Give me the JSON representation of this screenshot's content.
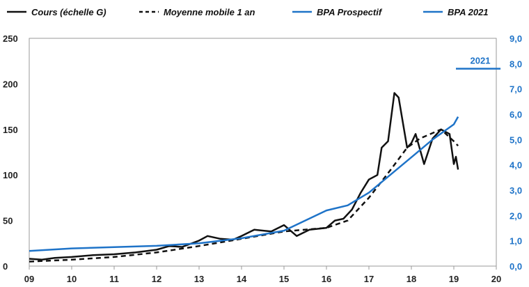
{
  "chart_data": {
    "type": "line",
    "title": "",
    "legend": [
      "Cours (échelle G)",
      "Moyenne mobile 1 an",
      "BPA Prospectif",
      "BPA 2021"
    ],
    "legend_position": "top",
    "xlim": [
      2009,
      2020
    ],
    "x_ticks": [
      "09",
      "10",
      "11",
      "12",
      "13",
      "14",
      "15",
      "16",
      "17",
      "18",
      "19",
      "20"
    ],
    "ylim_left": [
      0,
      250
    ],
    "y_ticks_left": [
      "0",
      "50",
      "100",
      "150",
      "200",
      "250"
    ],
    "ylim_right": [
      0,
      9
    ],
    "y_ticks_right": [
      "0,0",
      "1,0",
      "2,0",
      "3,0",
      "4,0",
      "5,0",
      "6,0",
      "7,0",
      "8,0",
      "9,0"
    ],
    "annotation": "2021",
    "colors": {
      "cours": "#111111",
      "moyenne": "#111111",
      "bpa": "#1e73c8"
    },
    "series": [
      {
        "name": "Cours (échelle G)",
        "axis": "left",
        "x": [
          2009,
          2009.3,
          2009.6,
          2010,
          2010.5,
          2011,
          2011.5,
          2012,
          2012.3,
          2012.6,
          2013,
          2013.2,
          2013.5,
          2013.8,
          2014,
          2014.3,
          2014.7,
          2015,
          2015.3,
          2015.6,
          2016,
          2016.2,
          2016.4,
          2016.6,
          2016.8,
          2017,
          2017.2,
          2017.3,
          2017.45,
          2017.6,
          2017.7,
          2017.9,
          2018.0,
          2018.1,
          2018.3,
          2018.5,
          2018.7,
          2018.9,
          2019,
          2019.05,
          2019.1
        ],
        "values": [
          8,
          7,
          9,
          10,
          12,
          13,
          15,
          18,
          22,
          21,
          28,
          33,
          30,
          29,
          33,
          40,
          38,
          45,
          33,
          40,
          42,
          50,
          52,
          62,
          80,
          95,
          100,
          130,
          137,
          190,
          185,
          130,
          135,
          145,
          112,
          140,
          150,
          145,
          112,
          120,
          106
        ]
      },
      {
        "name": "Moyenne mobile 1 an",
        "axis": "left",
        "x": [
          2009,
          2010,
          2011,
          2012,
          2013,
          2014,
          2015,
          2016,
          2016.5,
          2017,
          2017.5,
          2017.9,
          2018.2,
          2018.7,
          2019,
          2019.1
        ],
        "values": [
          5,
          7,
          10,
          15,
          22,
          30,
          38,
          42,
          50,
          75,
          105,
          130,
          140,
          150,
          137,
          132
        ]
      },
      {
        "name": "BPA Prospectif",
        "axis": "right",
        "x": [
          2009,
          2010,
          2011,
          2012,
          2013,
          2014,
          2015,
          2015.5,
          2016,
          2016.5,
          2017,
          2017.5,
          2018,
          2018.5,
          2019,
          2019.1
        ],
        "values": [
          0.6,
          0.7,
          0.75,
          0.8,
          0.9,
          1.1,
          1.4,
          1.8,
          2.2,
          2.4,
          2.9,
          3.6,
          4.3,
          5.0,
          5.6,
          5.9
        ]
      },
      {
        "name": "BPA 2021",
        "axis": "right",
        "x": [
          2019.05,
          2020.1
        ],
        "values": [
          7.8,
          7.8
        ]
      }
    ]
  }
}
